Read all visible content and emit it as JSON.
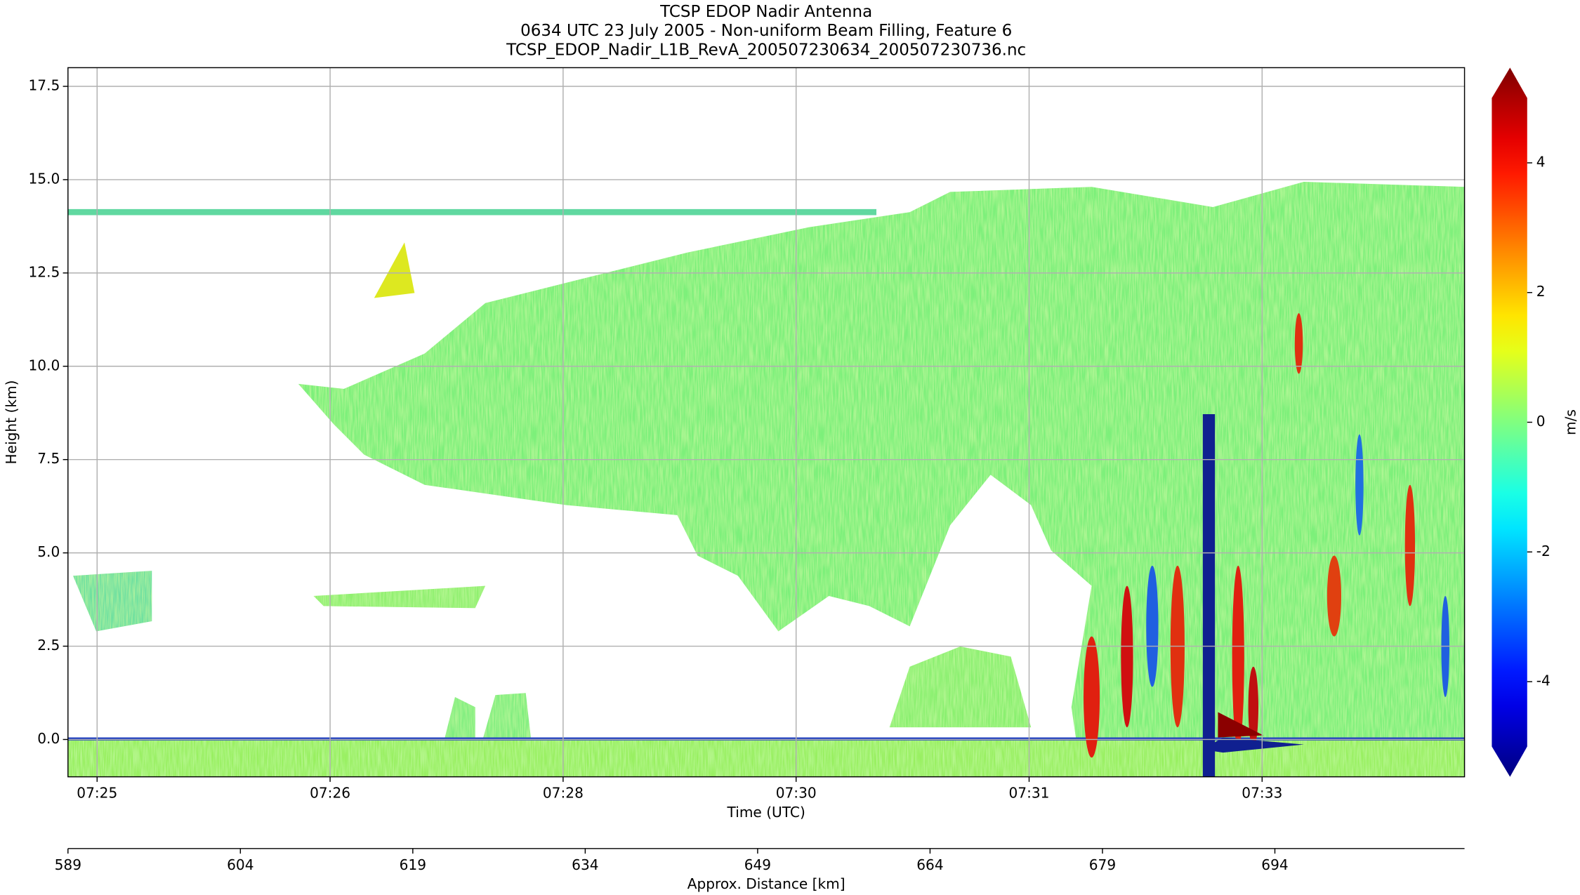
{
  "chart_data": {
    "type": "heatmap",
    "title": "TCSP EDOP Nadir Antenna",
    "subtitle": "0634 UTC 23 July 2005 - Non-uniform Beam Filling, Feature 6",
    "file_name": "TCSP_EDOP_Nadir_L1B_RevA_200507230634_200507230736.nc",
    "x_label": "Time (UTC)",
    "y_label": "Height (km)",
    "x2_label": "Approx. Distance [km]",
    "colorbar_label": "m/s",
    "colormap": "jet",
    "xlim": [
      25.1,
      34.69
    ],
    "xticks": [
      {
        "value": 25.3,
        "label": "07:25"
      },
      {
        "value": 26.9,
        "label": "07:26"
      },
      {
        "value": 28.5,
        "label": "07:28"
      },
      {
        "value": 30.1,
        "label": "07:30"
      },
      {
        "value": 31.7,
        "label": "07:31"
      },
      {
        "value": 33.3,
        "label": "07:33"
      }
    ],
    "ylim": [
      -1,
      18
    ],
    "yticks": [
      {
        "value": 0,
        "label": "0.0"
      },
      2.5,
      {
        "value": 5,
        "label": "5.0"
      },
      7.5,
      {
        "value": 10,
        "label": "10.0"
      },
      12.5,
      {
        "value": 15,
        "label": "15.0"
      },
      17.5
    ],
    "x2lim": [
      589,
      710.5
    ],
    "x2ticks": [
      589,
      604,
      619,
      634,
      649,
      664,
      679,
      694
    ],
    "clim": [
      -5,
      5
    ],
    "cticks": [
      -4,
      -2,
      0,
      2,
      4
    ],
    "grid": true
  }
}
